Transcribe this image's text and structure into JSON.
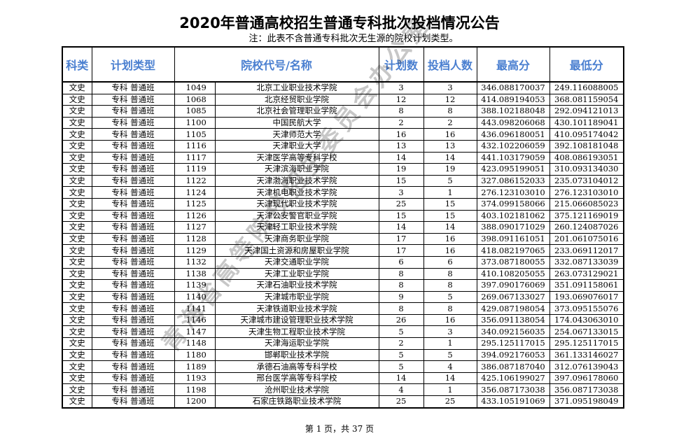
{
  "title": "2020年普通高校招生普通专科批次投档情况公告",
  "note": "注：此表不含普通专科批次无生源的院校计划类型。",
  "headers": [
    "科类",
    "计划类型",
    "院校代号/名称",
    "计划数",
    "投档人数",
    "最高分",
    "最低分"
  ],
  "rows": [
    [
      "文史",
      "专科 普通班",
      "1049",
      "北京工业职业技术学院",
      "3",
      "3",
      "346.088170037",
      "249.116088005"
    ],
    [
      "文史",
      "专科 普通班",
      "1068",
      "北京经贸职业学院",
      "12",
      "12",
      "414.089194053",
      "368.081159054"
    ],
    [
      "文史",
      "专科 普通班",
      "1085",
      "北京社会管理职业学院",
      "8",
      "8",
      "388.102188048",
      "292.094121013"
    ],
    [
      "文史",
      "专科 普通班",
      "1100",
      "中国民航大学",
      "2",
      "2",
      "443.098206068",
      "430.101189041"
    ],
    [
      "文史",
      "专科 普通班",
      "1105",
      "天津师范大学",
      "16",
      "16",
      "436.096180051",
      "410.095174042"
    ],
    [
      "文史",
      "专科 普通班",
      "1116",
      "天津职业大学",
      "13",
      "13",
      "432.102206059",
      "392.108181048"
    ],
    [
      "文史",
      "专科 普通班",
      "1117",
      "天津医学高等专科学校",
      "14",
      "14",
      "441.103179059",
      "408.086193051"
    ],
    [
      "文史",
      "专科 普通班",
      "1119",
      "天津滨海职业学院",
      "19",
      "19",
      "423.095199051",
      "310.093134030"
    ],
    [
      "文史",
      "专科 普通班",
      "1122",
      "天津渤海职业技术学院",
      "15",
      "5",
      "327.086152033",
      "235.073104012"
    ],
    [
      "文史",
      "专科 普通班",
      "1124",
      "天津机电职业技术学院",
      "3",
      "1",
      "276.123103010",
      "276.123103010"
    ],
    [
      "文史",
      "专科 普通班",
      "1125",
      "天津现代职业技术学院",
      "25",
      "15",
      "374.099158066",
      "215.066085023"
    ],
    [
      "文史",
      "专科 普通班",
      "1126",
      "天津公安警官职业学院",
      "15",
      "15",
      "403.102181062",
      "375.121169019"
    ],
    [
      "文史",
      "专科 普通班",
      "1127",
      "天津轻工职业技术学院",
      "14",
      "14",
      "388.090171029",
      "260.124087026"
    ],
    [
      "文史",
      "专科 普通班",
      "1128",
      "天津商务职业学院",
      "17",
      "16",
      "398.091161051",
      "201.061075016"
    ],
    [
      "文史",
      "专科 普通班",
      "1129",
      "天津国土资源和房屋职业学院",
      "17",
      "16",
      "418.082197065",
      "233.069112017"
    ],
    [
      "文史",
      "专科 普通班",
      "1132",
      "天津交通职业学院",
      "6",
      "6",
      "373.087180055",
      "332.087133039"
    ],
    [
      "文史",
      "专科 普通班",
      "1138",
      "天津工业职业学院",
      "8",
      "8",
      "410.108205055",
      "263.073129021"
    ],
    [
      "文史",
      "专科 普通班",
      "1139",
      "天津石油职业技术学院",
      "8",
      "8",
      "397.090176069",
      "351.091158061"
    ],
    [
      "文史",
      "专科 普通班",
      "1140",
      "天津城市职业学院",
      "9",
      "5",
      "269.067133027",
      "193.069076017"
    ],
    [
      "文史",
      "专科 普通班",
      "1141",
      "天津铁道职业技术学院",
      "8",
      "8",
      "429.087198054",
      "373.095155076"
    ],
    [
      "文史",
      "专科 普通班",
      "1146",
      "天津城市建设管理职业技术学院",
      "26",
      "16",
      "356.091138054",
      "174.043063010"
    ],
    [
      "文史",
      "专科 普通班",
      "1147",
      "天津生物工程职业技术学院",
      "5",
      "3",
      "340.092156035",
      "254.067133015"
    ],
    [
      "文史",
      "专科 普通班",
      "1148",
      "天津海运职业学院",
      "2",
      "1",
      "295.125117015",
      "295.125117015"
    ],
    [
      "文史",
      "专科 普通班",
      "1180",
      "邯郸职业技术学院",
      "5",
      "5",
      "394.092176053",
      "361.133146027"
    ],
    [
      "文史",
      "专科 普通班",
      "1189",
      "承德石油高等专科学校",
      "5",
      "4",
      "386.087187040",
      "312.076139043"
    ],
    [
      "文史",
      "专科 普通班",
      "1193",
      "邢台医学高等专科学校",
      "14",
      "14",
      "425.106199027",
      "397.096178060"
    ],
    [
      "文史",
      "专科 普通班",
      "1198",
      "沧州职业技术学院",
      "4",
      "1",
      "356.087173038",
      "356.087173038"
    ],
    [
      "文史",
      "专科 普通班",
      "1200",
      "石家庄铁路职业技术学院",
      "25",
      "25",
      "433.105191069",
      "371.095198049"
    ]
  ],
  "footer": "第 1 页，共 37 页",
  "watermark": "青海省高等院校招生委员会办公室",
  "colors": {
    "header_text": "#4a7fd0"
  }
}
